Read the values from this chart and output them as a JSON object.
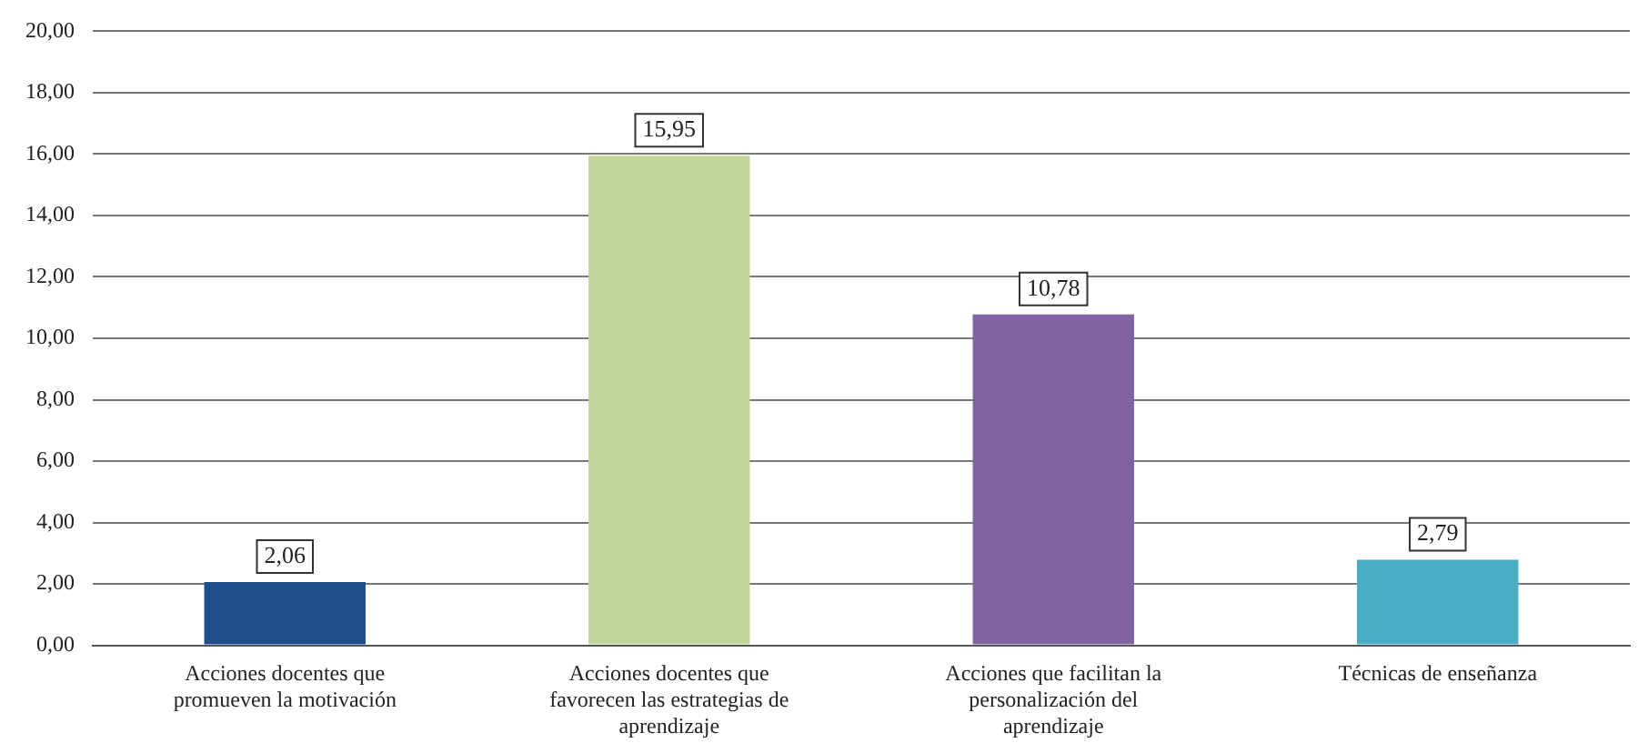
{
  "chart_data": {
    "type": "bar",
    "categories": [
      "Acciones docentes que promueven la motivación",
      "Acciones docentes que favorecen las estrategias de aprendizaje",
      "Acciones que facilitan la personalización del aprendizaje",
      "Técnicas de enseñanza"
    ],
    "values": [
      2.06,
      15.95,
      10.78,
      2.79
    ],
    "colors": [
      "#1f4e8c",
      "#c3d69b",
      "#8064a2",
      "#4bacc6"
    ],
    "value_labels": [
      "2,06",
      "15,95",
      "10,78",
      "2,79"
    ],
    "ylim": [
      0,
      20
    ],
    "yticks": [
      {
        "value": 0,
        "label": "0,00"
      },
      {
        "value": 2,
        "label": "2,00"
      },
      {
        "value": 4,
        "label": "4,00"
      },
      {
        "value": 6,
        "label": "6,00"
      },
      {
        "value": 8,
        "label": "8,00"
      },
      {
        "value": 10,
        "label": "10,00"
      },
      {
        "value": 12,
        "label": "12,00"
      },
      {
        "value": 14,
        "label": "14,00"
      },
      {
        "value": 16,
        "label": "16,00"
      },
      {
        "value": 18,
        "label": "18,00"
      },
      {
        "value": 20,
        "label": "20,00"
      }
    ],
    "grid": "y",
    "legend": false
  }
}
